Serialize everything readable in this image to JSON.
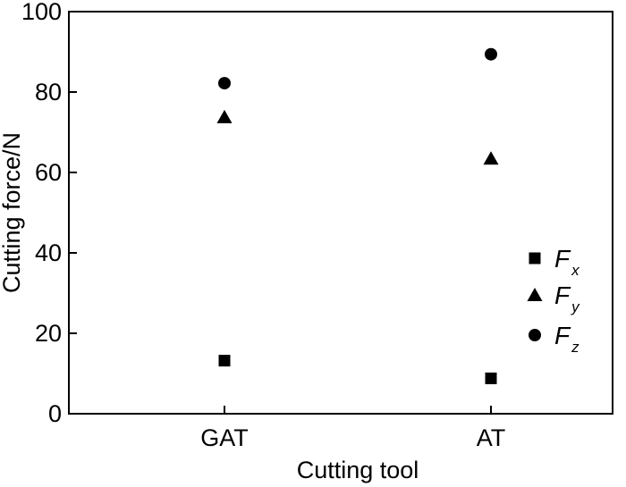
{
  "chart_data": {
    "type": "scatter",
    "title": "",
    "xlabel": "Cutting tool",
    "ylabel": "Cutting force/N",
    "categories": [
      "GAT",
      "AT"
    ],
    "ylim": [
      0,
      100
    ],
    "yticks": [
      0,
      20,
      40,
      60,
      80,
      100
    ],
    "grid": false,
    "legend_position": "right",
    "series": [
      {
        "name": "F",
        "subscript": "x",
        "marker": "square",
        "values": [
          13.2,
          8.8
        ]
      },
      {
        "name": "F",
        "subscript": "y",
        "marker": "triangle",
        "values": [
          73.8,
          63.5
        ]
      },
      {
        "name": "F",
        "subscript": "z",
        "marker": "circle",
        "values": [
          82.2,
          89.4
        ]
      }
    ]
  }
}
